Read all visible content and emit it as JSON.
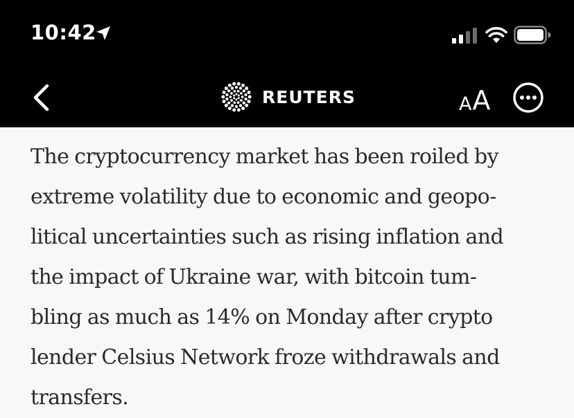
{
  "status_bar": {
    "time": "10:42",
    "icons": [
      "location-arrow-icon",
      "cellular-signal-icon",
      "wifi-icon",
      "battery-icon"
    ]
  },
  "nav_bar": {
    "brand_name": "REUTERS",
    "font_size_small": "A",
    "font_size_large": "A",
    "icons": [
      "back-chevron-icon",
      "reuters-logo-icon",
      "more-options-icon"
    ]
  },
  "article": {
    "lines": [
      "The cryptocurrency market has been roiled by",
      "extreme volatility due to economic and geopo-",
      "litical uncertainties such as rising inflation and",
      "the impact of Ukraine war, with bitcoin tum-",
      "bling as much as 14% on Monday after crypto",
      "lender Celsius Network froze withdrawals and",
      "transfers."
    ]
  },
  "colors": {
    "bar_background": "#000000",
    "page_background": "#f8f8f7",
    "text": "#2a2a2a"
  }
}
